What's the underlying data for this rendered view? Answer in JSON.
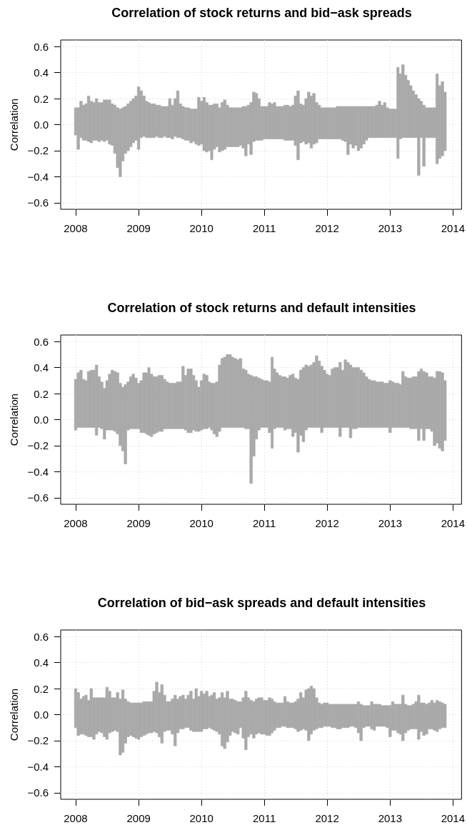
{
  "chart_data": [
    {
      "type": "bar",
      "title": "Correlation of stock returns and bid−ask spreads",
      "ylabel": "Correlation",
      "color": "#a9a9a9",
      "grid": true,
      "xlim": [
        "2007-10-06",
        "2014-02-20"
      ],
      "xticks": [
        "2008",
        "2009",
        "2010",
        "2011",
        "2012",
        "2013",
        "2014"
      ],
      "ylim": [
        -0.65,
        0.65
      ],
      "yticks": [
        {
          "value": -0.6,
          "label": "−0.6"
        },
        {
          "value": -0.4,
          "label": "−0.4"
        },
        {
          "value": -0.2,
          "label": "−0.2"
        },
        {
          "value": 0,
          "label": "0.0"
        },
        0.2,
        0.4,
        0.6
      ],
      "x": [
        "2008-01-01",
        "2008-01-16",
        "2008-02-01",
        "2008-02-16",
        "2008-03-01",
        "2008-03-16",
        "2008-04-01",
        "2008-04-16",
        "2008-05-01",
        "2008-05-16",
        "2008-06-01",
        "2008-06-16",
        "2008-07-01",
        "2008-07-16",
        "2008-08-01",
        "2008-08-16",
        "2008-09-01",
        "2008-09-16",
        "2008-10-01",
        "2008-10-16",
        "2008-11-01",
        "2008-11-16",
        "2008-12-01",
        "2008-12-16",
        "2009-01-01",
        "2009-01-16",
        "2009-02-01",
        "2009-02-16",
        "2009-03-01",
        "2009-03-16",
        "2009-04-01",
        "2009-04-16",
        "2009-05-01",
        "2009-05-16",
        "2009-06-01",
        "2009-06-16",
        "2009-07-01",
        "2009-07-16",
        "2009-08-01",
        "2009-08-16",
        "2009-09-01",
        "2009-09-16",
        "2009-10-01",
        "2009-10-16",
        "2009-11-01",
        "2009-11-16",
        "2009-12-01",
        "2009-12-16",
        "2010-01-01",
        "2010-01-16",
        "2010-02-01",
        "2010-02-16",
        "2010-03-01",
        "2010-03-16",
        "2010-04-01",
        "2010-04-16",
        "2010-05-01",
        "2010-05-16",
        "2010-06-01",
        "2010-06-16",
        "2010-07-01",
        "2010-07-16",
        "2010-08-01",
        "2010-08-16",
        "2010-09-01",
        "2010-09-16",
        "2010-10-01",
        "2010-10-16",
        "2010-11-01",
        "2010-11-16",
        "2010-12-01",
        "2010-12-16",
        "2011-01-01",
        "2011-01-16",
        "2011-02-01",
        "2011-02-16",
        "2011-03-01",
        "2011-03-16",
        "2011-04-01",
        "2011-04-16",
        "2011-05-01",
        "2011-05-16",
        "2011-06-01",
        "2011-06-16",
        "2011-07-01",
        "2011-07-16",
        "2011-08-01",
        "2011-08-16",
        "2011-09-01",
        "2011-09-16",
        "2011-10-01",
        "2011-10-16",
        "2011-11-01",
        "2011-11-16",
        "2011-12-01",
        "2011-12-16",
        "2012-01-01",
        "2012-01-16",
        "2012-02-01",
        "2012-02-16",
        "2012-03-01",
        "2012-03-16",
        "2012-04-01",
        "2012-04-16",
        "2012-05-01",
        "2012-05-16",
        "2012-06-01",
        "2012-06-16",
        "2012-07-01",
        "2012-07-16",
        "2012-08-01",
        "2012-08-16",
        "2012-09-01",
        "2012-09-16",
        "2012-10-01",
        "2012-10-16",
        "2012-11-01",
        "2012-11-16",
        "2012-12-01",
        "2012-12-16",
        "2013-01-01",
        "2013-01-16",
        "2013-02-01",
        "2013-02-16",
        "2013-03-01",
        "2013-03-16",
        "2013-04-01",
        "2013-04-16",
        "2013-05-01",
        "2013-05-16",
        "2013-06-01",
        "2013-06-16",
        "2013-07-01",
        "2013-07-16",
        "2013-08-01",
        "2013-08-16",
        "2013-09-01",
        "2013-09-16",
        "2013-10-01",
        "2013-10-16",
        "2013-11-01",
        "2013-11-16"
      ],
      "base": [
        -0.08,
        -0.19,
        -0.1,
        -0.12,
        -0.12,
        -0.13,
        -0.14,
        -0.12,
        -0.12,
        -0.13,
        -0.12,
        -0.13,
        -0.12,
        -0.15,
        -0.16,
        -0.22,
        -0.33,
        -0.4,
        -0.28,
        -0.22,
        -0.2,
        -0.17,
        -0.14,
        -0.12,
        -0.19,
        -0.1,
        -0.09,
        -0.1,
        -0.1,
        -0.1,
        -0.1,
        -0.09,
        -0.1,
        -0.1,
        -0.09,
        -0.1,
        -0.1,
        -0.11,
        -0.09,
        -0.1,
        -0.1,
        -0.11,
        -0.12,
        -0.12,
        -0.14,
        -0.13,
        -0.15,
        -0.16,
        -0.15,
        -0.2,
        -0.21,
        -0.2,
        -0.27,
        -0.19,
        -0.17,
        -0.21,
        -0.2,
        -0.19,
        -0.17,
        -0.17,
        -0.17,
        -0.17,
        -0.17,
        -0.16,
        -0.18,
        -0.24,
        -0.15,
        -0.23,
        -0.13,
        -0.12,
        -0.12,
        -0.12,
        -0.11,
        -0.11,
        -0.11,
        -0.11,
        -0.11,
        -0.11,
        -0.11,
        -0.11,
        -0.12,
        -0.12,
        -0.12,
        -0.12,
        -0.16,
        -0.27,
        -0.14,
        -0.13,
        -0.15,
        -0.14,
        -0.18,
        -0.15,
        -0.14,
        -0.11,
        -0.11,
        -0.11,
        -0.11,
        -0.11,
        -0.11,
        -0.11,
        -0.11,
        -0.11,
        -0.12,
        -0.13,
        -0.23,
        -0.15,
        -0.18,
        -0.16,
        -0.2,
        -0.18,
        -0.15,
        -0.12,
        -0.1,
        -0.1,
        -0.1,
        -0.1,
        -0.1,
        -0.1,
        -0.1,
        -0.1,
        -0.1,
        -0.1,
        -0.1,
        -0.26,
        -0.11,
        -0.1,
        -0.1,
        -0.1,
        -0.1,
        -0.1,
        -0.1,
        -0.39,
        -0.1,
        -0.32,
        -0.1,
        -0.1,
        -0.1,
        -0.1,
        -0.3,
        -0.26,
        -0.24,
        -0.2
      ],
      "values": [
        0.21,
        0.32,
        0.28,
        0.27,
        0.28,
        0.35,
        0.32,
        0.29,
        0.32,
        0.3,
        0.29,
        0.32,
        0.31,
        0.34,
        0.32,
        0.37,
        0.46,
        0.52,
        0.41,
        0.36,
        0.36,
        0.35,
        0.34,
        0.34,
        0.48,
        0.36,
        0.31,
        0.28,
        0.27,
        0.26,
        0.26,
        0.24,
        0.25,
        0.24,
        0.23,
        0.24,
        0.3,
        0.26,
        0.29,
        0.36,
        0.26,
        0.25,
        0.25,
        0.25,
        0.26,
        0.25,
        0.27,
        0.37,
        0.33,
        0.41,
        0.38,
        0.35,
        0.42,
        0.35,
        0.33,
        0.34,
        0.37,
        0.38,
        0.32,
        0.3,
        0.3,
        0.3,
        0.3,
        0.29,
        0.32,
        0.38,
        0.3,
        0.4,
        0.38,
        0.36,
        0.32,
        0.26,
        0.25,
        0.25,
        0.28,
        0.27,
        0.28,
        0.25,
        0.25,
        0.25,
        0.27,
        0.27,
        0.26,
        0.27,
        0.38,
        0.53,
        0.3,
        0.28,
        0.35,
        0.39,
        0.4,
        0.39,
        0.31,
        0.26,
        0.24,
        0.24,
        0.24,
        0.24,
        0.24,
        0.24,
        0.25,
        0.25,
        0.26,
        0.27,
        0.37,
        0.29,
        0.32,
        0.3,
        0.34,
        0.32,
        0.29,
        0.26,
        0.24,
        0.24,
        0.24,
        0.25,
        0.28,
        0.25,
        0.27,
        0.23,
        0.22,
        0.22,
        0.22,
        0.7,
        0.5,
        0.56,
        0.48,
        0.44,
        0.4,
        0.36,
        0.33,
        0.59,
        0.28,
        0.47,
        0.23,
        0.23,
        0.23,
        0.23,
        0.69,
        0.56,
        0.57,
        0.45
      ]
    },
    {
      "type": "bar",
      "title": "Correlation of stock returns and default intensities",
      "ylabel": "Correlation",
      "color": "#a9a9a9",
      "grid": true,
      "xlim": [
        "2007-10-06",
        "2014-02-20"
      ],
      "xticks": [
        "2008",
        "2009",
        "2010",
        "2011",
        "2012",
        "2013",
        "2014"
      ],
      "ylim": [
        -0.65,
        0.65
      ],
      "yticks": [
        {
          "value": -0.6,
          "label": "−0.6"
        },
        {
          "value": -0.4,
          "label": "−0.4"
        },
        {
          "value": -0.2,
          "label": "−0.2"
        },
        {
          "value": 0,
          "label": "0.0"
        },
        0.2,
        0.4,
        0.6
      ],
      "x": [
        "2008-01-01",
        "2008-01-16",
        "2008-02-01",
        "2008-02-16",
        "2008-03-01",
        "2008-03-16",
        "2008-04-01",
        "2008-04-16",
        "2008-05-01",
        "2008-05-16",
        "2008-06-01",
        "2008-06-16",
        "2008-07-01",
        "2008-07-16",
        "2008-08-01",
        "2008-08-16",
        "2008-09-01",
        "2008-09-16",
        "2008-10-01",
        "2008-10-16",
        "2008-11-01",
        "2008-11-16",
        "2008-12-01",
        "2008-12-16",
        "2009-01-01",
        "2009-01-16",
        "2009-02-01",
        "2009-02-16",
        "2009-03-01",
        "2009-03-16",
        "2009-04-01",
        "2009-04-16",
        "2009-05-01",
        "2009-05-16",
        "2009-06-01",
        "2009-06-16",
        "2009-07-01",
        "2009-07-16",
        "2009-08-01",
        "2009-08-16",
        "2009-09-01",
        "2009-09-16",
        "2009-10-01",
        "2009-10-16",
        "2009-11-01",
        "2009-11-16",
        "2009-12-01",
        "2009-12-16",
        "2010-01-01",
        "2010-01-16",
        "2010-02-01",
        "2010-02-16",
        "2010-03-01",
        "2010-03-16",
        "2010-04-01",
        "2010-04-16",
        "2010-05-01",
        "2010-05-16",
        "2010-06-01",
        "2010-06-16",
        "2010-07-01",
        "2010-07-16",
        "2010-08-01",
        "2010-08-16",
        "2010-09-01",
        "2010-09-16",
        "2010-10-01",
        "2010-10-16",
        "2010-11-01",
        "2010-11-16",
        "2010-12-01",
        "2010-12-16",
        "2011-01-01",
        "2011-01-16",
        "2011-02-01",
        "2011-02-16",
        "2011-03-01",
        "2011-03-16",
        "2011-04-01",
        "2011-04-16",
        "2011-05-01",
        "2011-05-16",
        "2011-06-01",
        "2011-06-16",
        "2011-07-01",
        "2011-07-16",
        "2011-08-01",
        "2011-08-16",
        "2011-09-01",
        "2011-09-16",
        "2011-10-01",
        "2011-10-16",
        "2011-11-01",
        "2011-11-16",
        "2011-12-01",
        "2011-12-16",
        "2012-01-01",
        "2012-01-16",
        "2012-02-01",
        "2012-02-16",
        "2012-03-01",
        "2012-03-16",
        "2012-04-01",
        "2012-04-16",
        "2012-05-01",
        "2012-05-16",
        "2012-06-01",
        "2012-06-16",
        "2012-07-01",
        "2012-07-16",
        "2012-08-01",
        "2012-08-16",
        "2012-09-01",
        "2012-09-16",
        "2012-10-01",
        "2012-10-16",
        "2012-11-01",
        "2012-11-16",
        "2012-12-01",
        "2012-12-16",
        "2013-01-01",
        "2013-01-16",
        "2013-02-01",
        "2013-02-16",
        "2013-03-01",
        "2013-03-16",
        "2013-04-01",
        "2013-04-16",
        "2013-05-01",
        "2013-05-16",
        "2013-06-01",
        "2013-06-16",
        "2013-07-01",
        "2013-07-16",
        "2013-08-01",
        "2013-08-16",
        "2013-09-01",
        "2013-09-16",
        "2013-10-01",
        "2013-10-16",
        "2013-11-01",
        "2013-11-16"
      ],
      "base": [
        -0.08,
        -0.06,
        -0.06,
        -0.06,
        -0.06,
        -0.06,
        -0.06,
        -0.06,
        -0.12,
        -0.06,
        -0.07,
        -0.15,
        -0.08,
        -0.08,
        -0.08,
        -0.09,
        -0.11,
        -0.2,
        -0.24,
        -0.34,
        -0.08,
        -0.07,
        -0.07,
        -0.07,
        -0.07,
        -0.1,
        -0.1,
        -0.11,
        -0.12,
        -0.13,
        -0.11,
        -0.1,
        -0.09,
        -0.09,
        -0.07,
        -0.07,
        -0.07,
        -0.07,
        -0.07,
        -0.07,
        -0.07,
        -0.07,
        -0.08,
        -0.1,
        -0.1,
        -0.08,
        -0.09,
        -0.09,
        -0.08,
        -0.07,
        -0.07,
        -0.06,
        -0.08,
        -0.11,
        -0.13,
        -0.09,
        -0.06,
        -0.06,
        -0.06,
        -0.06,
        -0.06,
        -0.06,
        -0.06,
        -0.06,
        -0.06,
        -0.07,
        -0.07,
        -0.49,
        -0.28,
        -0.15,
        -0.08,
        -0.06,
        -0.06,
        -0.06,
        -0.1,
        -0.22,
        -0.07,
        -0.06,
        -0.06,
        -0.06,
        -0.08,
        -0.07,
        -0.07,
        -0.13,
        -0.1,
        -0.25,
        -0.12,
        -0.17,
        -0.08,
        -0.06,
        -0.06,
        -0.06,
        -0.06,
        -0.06,
        -0.1,
        -0.06,
        -0.06,
        -0.06,
        -0.06,
        -0.06,
        -0.06,
        -0.13,
        -0.06,
        -0.06,
        -0.06,
        -0.14,
        -0.07,
        -0.07,
        -0.06,
        -0.06,
        -0.06,
        -0.06,
        -0.06,
        -0.06,
        -0.06,
        -0.06,
        -0.06,
        -0.06,
        -0.06,
        -0.06,
        -0.1,
        -0.06,
        -0.06,
        -0.06,
        -0.06,
        -0.06,
        -0.06,
        -0.06,
        -0.07,
        -0.07,
        -0.07,
        -0.16,
        -0.07,
        -0.16,
        -0.07,
        -0.07,
        -0.09,
        -0.2,
        -0.18,
        -0.22,
        -0.24,
        -0.16
      ],
      "values": [
        0.39,
        0.42,
        0.44,
        0.37,
        0.36,
        0.43,
        0.44,
        0.44,
        0.54,
        0.39,
        0.36,
        0.39,
        0.38,
        0.43,
        0.46,
        0.46,
        0.47,
        0.48,
        0.49,
        0.61,
        0.37,
        0.4,
        0.42,
        0.39,
        0.35,
        0.4,
        0.46,
        0.47,
        0.52,
        0.48,
        0.44,
        0.43,
        0.43,
        0.43,
        0.38,
        0.36,
        0.35,
        0.35,
        0.35,
        0.36,
        0.36,
        0.48,
        0.42,
        0.49,
        0.49,
        0.42,
        0.39,
        0.34,
        0.38,
        0.42,
        0.41,
        0.35,
        0.36,
        0.39,
        0.42,
        0.51,
        0.53,
        0.54,
        0.56,
        0.56,
        0.54,
        0.53,
        0.52,
        0.53,
        0.45,
        0.45,
        0.42,
        0.83,
        0.61,
        0.48,
        0.4,
        0.37,
        0.36,
        0.36,
        0.39,
        0.7,
        0.46,
        0.42,
        0.4,
        0.39,
        0.41,
        0.39,
        0.41,
        0.48,
        0.42,
        0.56,
        0.5,
        0.57,
        0.5,
        0.47,
        0.48,
        0.5,
        0.55,
        0.51,
        0.51,
        0.44,
        0.41,
        0.4,
        0.45,
        0.46,
        0.46,
        0.57,
        0.44,
        0.52,
        0.5,
        0.56,
        0.47,
        0.47,
        0.46,
        0.44,
        0.42,
        0.39,
        0.37,
        0.36,
        0.36,
        0.35,
        0.35,
        0.35,
        0.34,
        0.34,
        0.4,
        0.35,
        0.34,
        0.34,
        0.33,
        0.43,
        0.39,
        0.38,
        0.39,
        0.4,
        0.4,
        0.53,
        0.46,
        0.53,
        0.43,
        0.4,
        0.42,
        0.52,
        0.55,
        0.59,
        0.6,
        0.46
      ]
    },
    {
      "type": "bar",
      "title": "Correlation of bid−ask spreads and default intensities",
      "ylabel": "Correlation",
      "color": "#a9a9a9",
      "grid": true,
      "xlim": [
        "2007-10-06",
        "2014-02-20"
      ],
      "xticks": [
        "2008",
        "2009",
        "2010",
        "2011",
        "2012",
        "2013",
        "2014"
      ],
      "ylim": [
        -0.65,
        0.65
      ],
      "yticks": [
        {
          "value": -0.6,
          "label": "−0.6"
        },
        {
          "value": -0.4,
          "label": "−0.4"
        },
        {
          "value": -0.2,
          "label": "−0.2"
        },
        {
          "value": 0,
          "label": "0.0"
        },
        0.2,
        0.4,
        0.6
      ],
      "x": [
        "2008-01-01",
        "2008-01-16",
        "2008-02-01",
        "2008-02-16",
        "2008-03-01",
        "2008-03-16",
        "2008-04-01",
        "2008-04-16",
        "2008-05-01",
        "2008-05-16",
        "2008-06-01",
        "2008-06-16",
        "2008-07-01",
        "2008-07-16",
        "2008-08-01",
        "2008-08-16",
        "2008-09-01",
        "2008-09-16",
        "2008-10-01",
        "2008-10-16",
        "2008-11-01",
        "2008-11-16",
        "2008-12-01",
        "2008-12-16",
        "2009-01-01",
        "2009-01-16",
        "2009-02-01",
        "2009-02-16",
        "2009-03-01",
        "2009-03-16",
        "2009-04-01",
        "2009-04-16",
        "2009-05-01",
        "2009-05-16",
        "2009-06-01",
        "2009-06-16",
        "2009-07-01",
        "2009-07-16",
        "2009-08-01",
        "2009-08-16",
        "2009-09-01",
        "2009-09-16",
        "2009-10-01",
        "2009-10-16",
        "2009-11-01",
        "2009-11-16",
        "2009-12-01",
        "2009-12-16",
        "2010-01-01",
        "2010-01-16",
        "2010-02-01",
        "2010-02-16",
        "2010-03-01",
        "2010-03-16",
        "2010-04-01",
        "2010-04-16",
        "2010-05-01",
        "2010-05-16",
        "2010-06-01",
        "2010-06-16",
        "2010-07-01",
        "2010-07-16",
        "2010-08-01",
        "2010-08-16",
        "2010-09-01",
        "2010-09-16",
        "2010-10-01",
        "2010-10-16",
        "2010-11-01",
        "2010-11-16",
        "2010-12-01",
        "2010-12-16",
        "2011-01-01",
        "2011-01-16",
        "2011-02-01",
        "2011-02-16",
        "2011-03-01",
        "2011-03-16",
        "2011-04-01",
        "2011-04-16",
        "2011-05-01",
        "2011-05-16",
        "2011-06-01",
        "2011-06-16",
        "2011-07-01",
        "2011-07-16",
        "2011-08-01",
        "2011-08-16",
        "2011-09-01",
        "2011-09-16",
        "2011-10-01",
        "2011-10-16",
        "2011-11-01",
        "2011-11-16",
        "2011-12-01",
        "2011-12-16",
        "2012-01-01",
        "2012-01-16",
        "2012-02-01",
        "2012-02-16",
        "2012-03-01",
        "2012-03-16",
        "2012-04-01",
        "2012-04-16",
        "2012-05-01",
        "2012-05-16",
        "2012-06-01",
        "2012-06-16",
        "2012-07-01",
        "2012-07-16",
        "2012-08-01",
        "2012-08-16",
        "2012-09-01",
        "2012-09-16",
        "2012-10-01",
        "2012-10-16",
        "2012-11-01",
        "2012-11-16",
        "2012-12-01",
        "2012-12-16",
        "2013-01-01",
        "2013-01-16",
        "2013-02-01",
        "2013-02-16",
        "2013-03-01",
        "2013-03-16",
        "2013-04-01",
        "2013-04-16",
        "2013-05-01",
        "2013-05-16",
        "2013-06-01",
        "2013-06-16",
        "2013-07-01",
        "2013-07-16",
        "2013-08-01",
        "2013-08-16",
        "2013-09-01",
        "2013-09-16",
        "2013-10-01",
        "2013-10-16",
        "2013-11-01",
        "2013-11-16"
      ],
      "base": [
        -0.1,
        -0.16,
        -0.15,
        -0.15,
        -0.16,
        -0.17,
        -0.17,
        -0.19,
        -0.15,
        -0.13,
        -0.14,
        -0.17,
        -0.19,
        -0.14,
        -0.13,
        -0.12,
        -0.13,
        -0.31,
        -0.29,
        -0.22,
        -0.17,
        -0.16,
        -0.17,
        -0.18,
        -0.19,
        -0.17,
        -0.16,
        -0.15,
        -0.14,
        -0.14,
        -0.13,
        -0.14,
        -0.17,
        -0.22,
        -0.13,
        -0.12,
        -0.12,
        -0.15,
        -0.24,
        -0.14,
        -0.11,
        -0.11,
        -0.1,
        -0.1,
        -0.12,
        -0.13,
        -0.13,
        -0.13,
        -0.13,
        -0.11,
        -0.11,
        -0.1,
        -0.11,
        -0.12,
        -0.13,
        -0.15,
        -0.24,
        -0.26,
        -0.21,
        -0.16,
        -0.13,
        -0.14,
        -0.15,
        -0.1,
        -0.18,
        -0.27,
        -0.17,
        -0.15,
        -0.18,
        -0.15,
        -0.14,
        -0.15,
        -0.15,
        -0.16,
        -0.16,
        -0.14,
        -0.12,
        -0.1,
        -0.1,
        -0.09,
        -0.09,
        -0.1,
        -0.1,
        -0.1,
        -0.11,
        -0.13,
        -0.12,
        -0.11,
        -0.12,
        -0.2,
        -0.15,
        -0.12,
        -0.11,
        -0.1,
        -0.1,
        -0.09,
        -0.09,
        -0.09,
        -0.1,
        -0.1,
        -0.11,
        -0.11,
        -0.1,
        -0.1,
        -0.1,
        -0.09,
        -0.09,
        -0.1,
        -0.14,
        -0.2,
        -0.1,
        -0.09,
        -0.09,
        -0.11,
        -0.12,
        -0.09,
        -0.09,
        -0.09,
        -0.09,
        -0.1,
        -0.17,
        -0.12,
        -0.12,
        -0.14,
        -0.15,
        -0.2,
        -0.14,
        -0.12,
        -0.11,
        -0.11,
        -0.11,
        -0.19,
        -0.13,
        -0.16,
        -0.15,
        -0.11,
        -0.11,
        -0.12,
        -0.13,
        -0.11,
        -0.1,
        -0.1
      ],
      "values": [
        0.3,
        0.33,
        0.27,
        0.29,
        0.31,
        0.28,
        0.37,
        0.32,
        0.28,
        0.26,
        0.27,
        0.3,
        0.4,
        0.32,
        0.26,
        0.25,
        0.3,
        0.43,
        0.48,
        0.34,
        0.27,
        0.25,
        0.26,
        0.27,
        0.28,
        0.26,
        0.26,
        0.25,
        0.24,
        0.24,
        0.31,
        0.39,
        0.34,
        0.45,
        0.28,
        0.22,
        0.22,
        0.27,
        0.39,
        0.26,
        0.25,
        0.26,
        0.22,
        0.25,
        0.3,
        0.25,
        0.33,
        0.27,
        0.31,
        0.27,
        0.29,
        0.24,
        0.26,
        0.29,
        0.25,
        0.28,
        0.41,
        0.39,
        0.39,
        0.28,
        0.25,
        0.25,
        0.25,
        0.2,
        0.31,
        0.45,
        0.3,
        0.26,
        0.28,
        0.27,
        0.27,
        0.28,
        0.26,
        0.27,
        0.29,
        0.26,
        0.22,
        0.19,
        0.19,
        0.18,
        0.23,
        0.2,
        0.19,
        0.19,
        0.21,
        0.25,
        0.29,
        0.24,
        0.31,
        0.4,
        0.37,
        0.32,
        0.24,
        0.19,
        0.18,
        0.18,
        0.18,
        0.17,
        0.18,
        0.18,
        0.19,
        0.19,
        0.18,
        0.18,
        0.18,
        0.17,
        0.17,
        0.18,
        0.24,
        0.28,
        0.17,
        0.16,
        0.16,
        0.21,
        0.2,
        0.17,
        0.17,
        0.16,
        0.16,
        0.17,
        0.24,
        0.22,
        0.2,
        0.22,
        0.23,
        0.35,
        0.22,
        0.19,
        0.18,
        0.19,
        0.21,
        0.34,
        0.22,
        0.25,
        0.23,
        0.2,
        0.22,
        0.21,
        0.24,
        0.21,
        0.19,
        0.18
      ]
    }
  ]
}
